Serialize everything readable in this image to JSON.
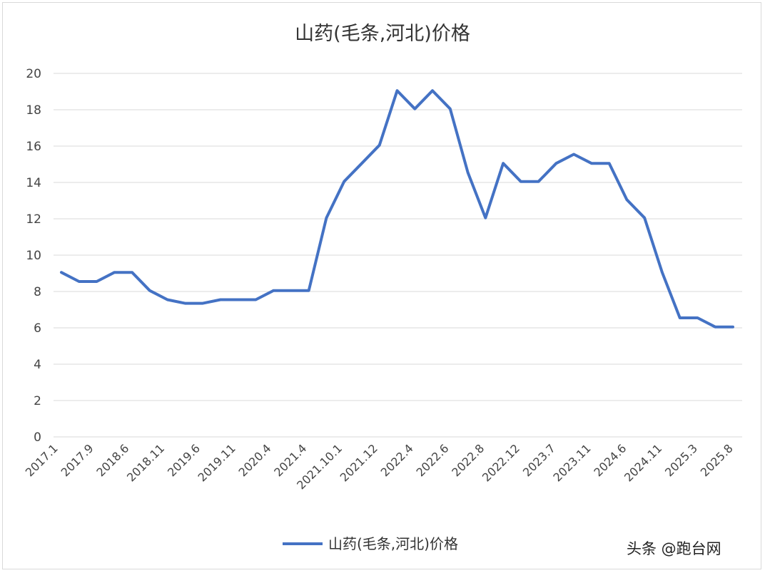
{
  "chart_data": {
    "type": "line",
    "title": "山药(毛条,河北)价格",
    "ylim": [
      0,
      20
    ],
    "yticks": [
      0,
      2,
      4,
      6,
      8,
      10,
      12,
      14,
      16,
      18,
      20
    ],
    "grid": true,
    "legend_position": "bottom",
    "x_tick_labels": [
      "2017.1",
      "2017.9",
      "2018.6",
      "2018.11",
      "2019.6",
      "2019.11",
      "2020.4",
      "2021.4",
      "2021.10.1",
      "2021.12",
      "2022.4",
      "2022.6",
      "2022.8",
      "2022.12",
      "2023.7",
      "2023.11",
      "2024.6",
      "2024.11",
      "2025.3",
      "2025.8"
    ],
    "series": [
      {
        "name": "山药(毛条,河北)价格",
        "color": "#4472C4",
        "values": [
          9.05,
          8.55,
          8.55,
          9.05,
          9.05,
          8.05,
          7.55,
          7.35,
          7.35,
          7.55,
          7.55,
          7.55,
          8.05,
          8.05,
          8.05,
          12.05,
          14.05,
          15.05,
          16.05,
          19.05,
          18.05,
          19.05,
          18.05,
          14.55,
          12.05,
          15.05,
          14.05,
          14.05,
          15.05,
          15.55,
          15.05,
          15.05,
          13.05,
          12.05,
          9.05,
          6.55,
          6.55,
          6.05,
          6.05
        ]
      }
    ]
  },
  "watermark": "头条 @跑台网"
}
